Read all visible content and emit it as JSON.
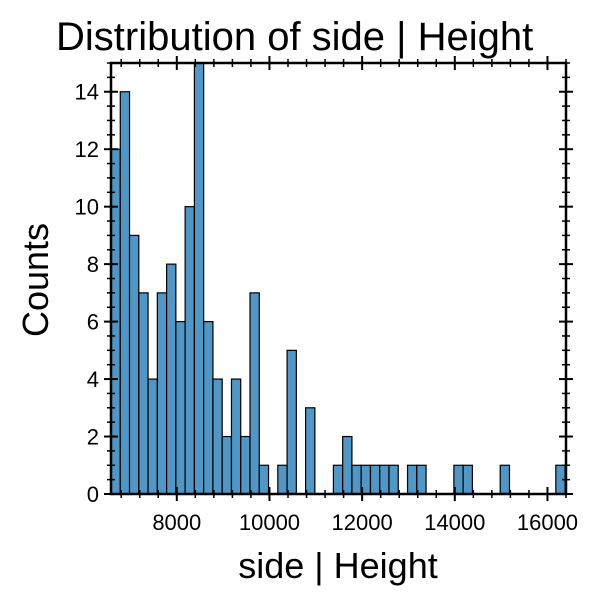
{
  "chart_data": {
    "type": "bar",
    "title": "Distribution of side | Height",
    "xlabel": "side | Height",
    "ylabel": "Counts",
    "bar_color": "#5196c4",
    "edge_color": "#000000",
    "xlim": [
      6580,
      16400
    ],
    "ylim": [
      0,
      15
    ],
    "x_ticks": [
      8000,
      10000,
      12000,
      14000,
      16000
    ],
    "x_tick_labels": [
      "8000",
      "10000",
      "12000",
      "14000",
      "16000"
    ],
    "y_ticks": [
      0,
      2,
      4,
      6,
      8,
      10,
      12,
      14
    ],
    "y_tick_labels": [
      "0",
      "2",
      "4",
      "6",
      "8",
      "10",
      "12",
      "14"
    ],
    "grid": false,
    "bins": {
      "start": 6580,
      "width": 200
    },
    "values": [
      12,
      14,
      9,
      7,
      4,
      7,
      8,
      6,
      10,
      15,
      6,
      4,
      2,
      4,
      2,
      7,
      1,
      0,
      1,
      5,
      0,
      3,
      0,
      0,
      1,
      2,
      1,
      1,
      1,
      1,
      1,
      0,
      1,
      1,
      0,
      0,
      0,
      1,
      1,
      0,
      0,
      0,
      1,
      0,
      0,
      0,
      0,
      0,
      1
    ]
  }
}
